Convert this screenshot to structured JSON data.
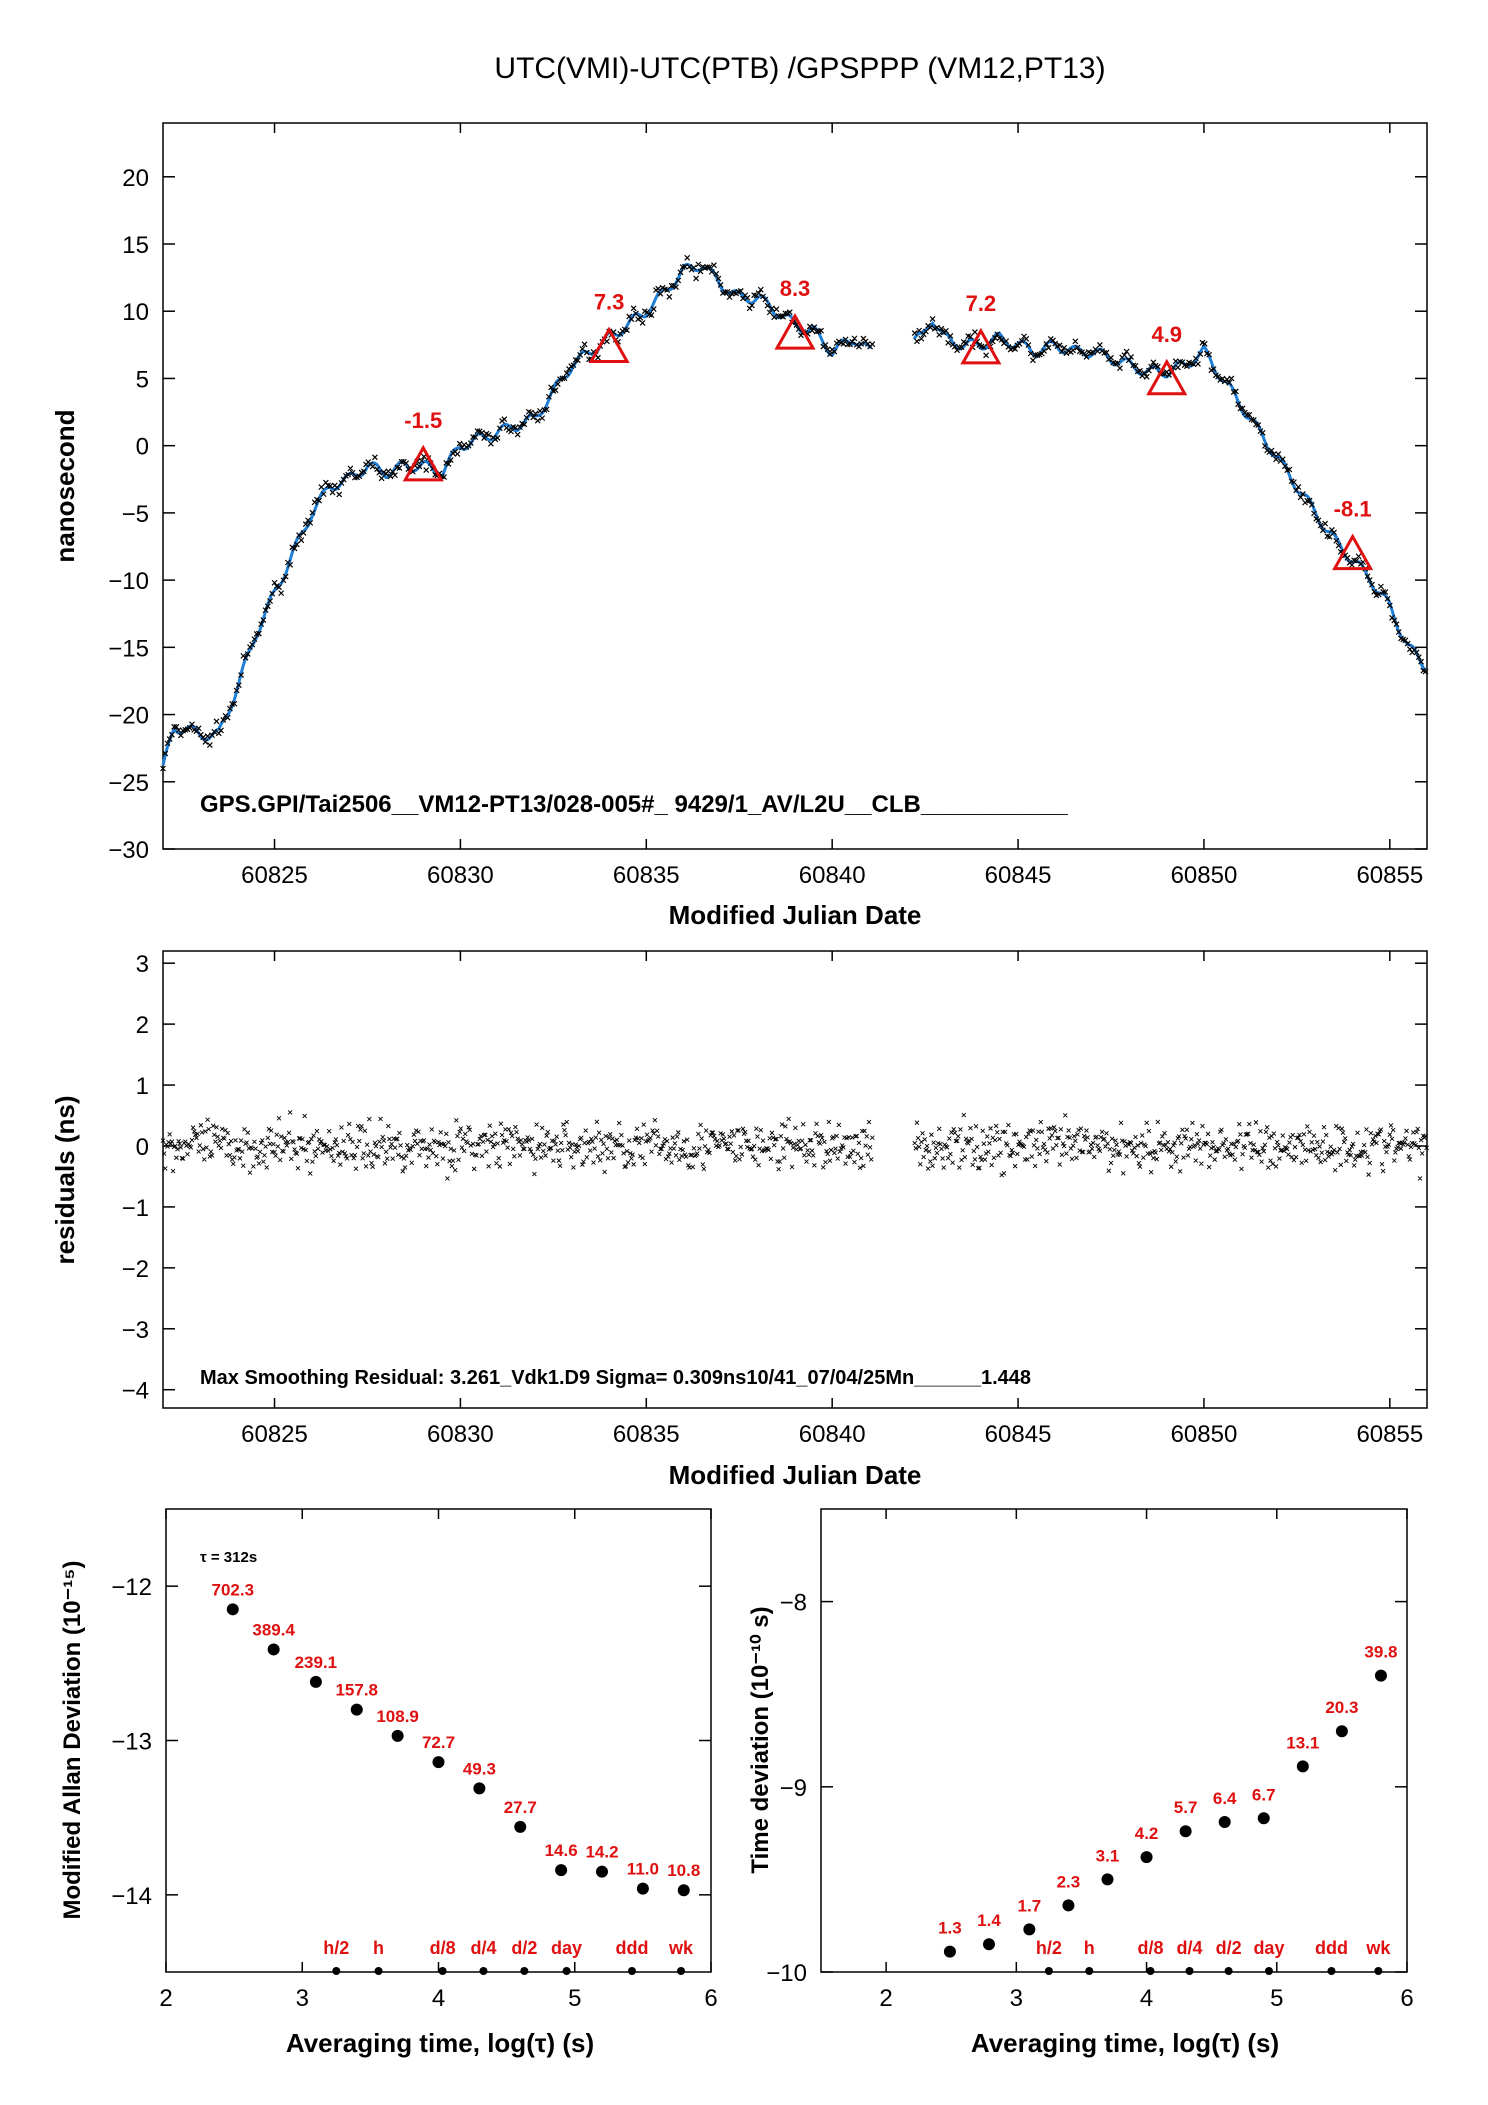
{
  "title": "UTC(VMI)-UTC(PTB)  /GPSPPP  (VM12,PT13)",
  "colors": {
    "line": "#1f7fd6",
    "marker": "#e01010",
    "label": "#e01010",
    "points": "#000000"
  },
  "chart_data": [
    {
      "type": "line",
      "id": "main",
      "xlabel": "Modified Julian Date",
      "ylabel": "nanosecond",
      "xlim": [
        60822,
        60856
      ],
      "ylim": [
        -30,
        24
      ],
      "xticks": [
        60825,
        60830,
        60835,
        60840,
        60845,
        60850,
        60855
      ],
      "yticks": [
        -30,
        -25,
        -20,
        -15,
        -10,
        -5,
        0,
        5,
        10,
        15,
        20
      ],
      "gap": [
        60841.1,
        60842.2
      ],
      "series": [
        {
          "x": [
            60822.0,
            60822.3,
            60822.6,
            60823.0,
            60823.5,
            60824.0,
            60824.5,
            60825.0,
            60825.5,
            60826.0,
            60826.5,
            60827.0,
            60827.5,
            60828.0,
            60828.5,
            60829.0,
            60829.5,
            60830.0,
            60830.5,
            60831.0,
            60831.5,
            60832.0,
            60832.5,
            60833.0,
            60833.5,
            60834.0,
            60834.5,
            60835.0,
            60835.5,
            60836.0,
            60836.5,
            60837.0,
            60837.5,
            60838.0,
            60838.5,
            60839.0,
            60839.5,
            60840.0,
            60840.3,
            60840.6,
            60841.0,
            60842.4,
            60842.7,
            60843.0,
            60843.5,
            60844.0,
            60844.5,
            60845.0,
            60845.5,
            60846.0,
            60846.5,
            60847.0,
            60847.5,
            60848.0,
            60848.5,
            60849.0,
            60849.5,
            60850.0,
            60850.5,
            60851.0,
            60851.5,
            60852.0,
            60852.5,
            60853.0,
            60853.5,
            60854.0,
            60854.5,
            60855.0,
            60855.5,
            60856.0
          ],
          "y": [
            -24,
            -21,
            -21,
            -21.5,
            -21.5,
            -18,
            -14,
            -11,
            -8,
            -5,
            -3,
            -2.5,
            -1.5,
            -2,
            -1.5,
            -1.5,
            -2,
            0,
            0.5,
            1,
            1.5,
            2,
            4,
            6,
            7,
            8,
            9,
            10,
            11.5,
            13,
            13.5,
            12,
            11,
            11,
            10,
            9,
            8.5,
            7,
            7.5,
            8,
            7,
            8,
            9.5,
            8,
            7.5,
            7.5,
            8,
            7.5,
            7,
            7.5,
            7,
            7,
            6.5,
            6,
            5.5,
            5.5,
            6,
            7,
            5,
            3,
            1,
            -1,
            -3,
            -5,
            -7,
            -8.5,
            -10,
            -12,
            -15,
            -16.5
          ]
        }
      ],
      "annotations": [
        {
          "x": 60829,
          "y": -1.5,
          "label": "-1.5"
        },
        {
          "x": 60834,
          "y": 7.3,
          "label": "7.3"
        },
        {
          "x": 60839,
          "y": 8.3,
          "label": "8.3"
        },
        {
          "x": 60844,
          "y": 7.2,
          "label": "7.2"
        },
        {
          "x": 60849,
          "y": 4.9,
          "label": "4.9"
        },
        {
          "x": 60854,
          "y": -8.1,
          "label": "-8.1"
        }
      ],
      "caption": "GPS.GPI/Tai2506__VM12-PT13/028-005#_  9429/1_AV/L2U__CLB___________"
    },
    {
      "type": "scatter",
      "id": "residuals",
      "xlabel": "Modified Julian Date",
      "ylabel": "residuals (ns)",
      "xlim": [
        60822,
        60856
      ],
      "ylim": [
        -4.3,
        3.2
      ],
      "xticks": [
        60825,
        60830,
        60835,
        60840,
        60845,
        60850,
        60855
      ],
      "yticks": [
        -4,
        -3,
        -2,
        -1,
        0,
        1,
        2,
        3
      ],
      "sigma": 0.309,
      "caption": "Max Smoothing Residual: 3.261_Vdk1.D9  Sigma= 0.309ns10/41_07/04/25Mn______1.448"
    },
    {
      "type": "scatter",
      "id": "mdev",
      "xlabel": "Averaging time, log(τ) (s)",
      "ylabel": "Modified Allan Deviation (10⁻¹⁵)",
      "note": "τ = 312s",
      "xlim": [
        2,
        6
      ],
      "ylim": [
        -14.5,
        -11.5
      ],
      "xticks": [
        2,
        3,
        4,
        5,
        6
      ],
      "yticks": [
        -14,
        -13,
        -12
      ],
      "x": [
        2.49,
        2.79,
        3.1,
        3.4,
        3.7,
        4.0,
        4.3,
        4.6,
        4.9,
        5.2,
        5.5,
        5.8
      ],
      "y": [
        -12.15,
        -12.41,
        -12.62,
        -12.8,
        -12.97,
        -13.14,
        -13.31,
        -13.56,
        -13.84,
        -13.85,
        -13.96,
        -13.97
      ],
      "labels": [
        "702.3",
        "389.4",
        "239.1",
        "157.8",
        "108.9",
        "72.7",
        "49.3",
        "27.7",
        "14.6",
        "14.2",
        "11.0",
        "10.8"
      ],
      "markers": [
        {
          "x": 3.25,
          "label": "h/2"
        },
        {
          "x": 3.56,
          "label": "h"
        },
        {
          "x": 4.03,
          "label": "d/8"
        },
        {
          "x": 4.33,
          "label": "d/4"
        },
        {
          "x": 4.63,
          "label": "d/2"
        },
        {
          "x": 4.94,
          "label": "day"
        },
        {
          "x": 5.42,
          "label": "ddd"
        },
        {
          "x": 5.78,
          "label": "wk"
        }
      ]
    },
    {
      "type": "scatter",
      "id": "tdev",
      "xlabel": "Averaging time, log(τ) (s)",
      "ylabel": "Time deviation (10⁻¹⁰ s)",
      "xlim": [
        1.5,
        6
      ],
      "ylim": [
        -10,
        -7.5
      ],
      "xticks": [
        2,
        3,
        4,
        5,
        6
      ],
      "yticks": [
        -10,
        -9,
        -8
      ],
      "x": [
        2.49,
        2.79,
        3.1,
        3.4,
        3.7,
        4.0,
        4.3,
        4.6,
        4.9,
        5.2,
        5.5,
        5.8
      ],
      "y": [
        -9.89,
        -9.85,
        -9.77,
        -9.64,
        -9.5,
        -9.38,
        -9.24,
        -9.19,
        -9.17,
        -8.89,
        -8.7,
        -8.4
      ],
      "labels": [
        "1.3",
        "1.4",
        "1.7",
        "2.3",
        "3.1",
        "4.2",
        "5.7",
        "6.4",
        "6.7",
        "13.1",
        "20.3",
        "39.8"
      ],
      "markers": [
        {
          "x": 3.25,
          "label": "h/2"
        },
        {
          "x": 3.56,
          "label": "h"
        },
        {
          "x": 4.03,
          "label": "d/8"
        },
        {
          "x": 4.33,
          "label": "d/4"
        },
        {
          "x": 4.63,
          "label": "d/2"
        },
        {
          "x": 4.94,
          "label": "day"
        },
        {
          "x": 5.42,
          "label": "ddd"
        },
        {
          "x": 5.78,
          "label": "wk"
        }
      ]
    }
  ]
}
